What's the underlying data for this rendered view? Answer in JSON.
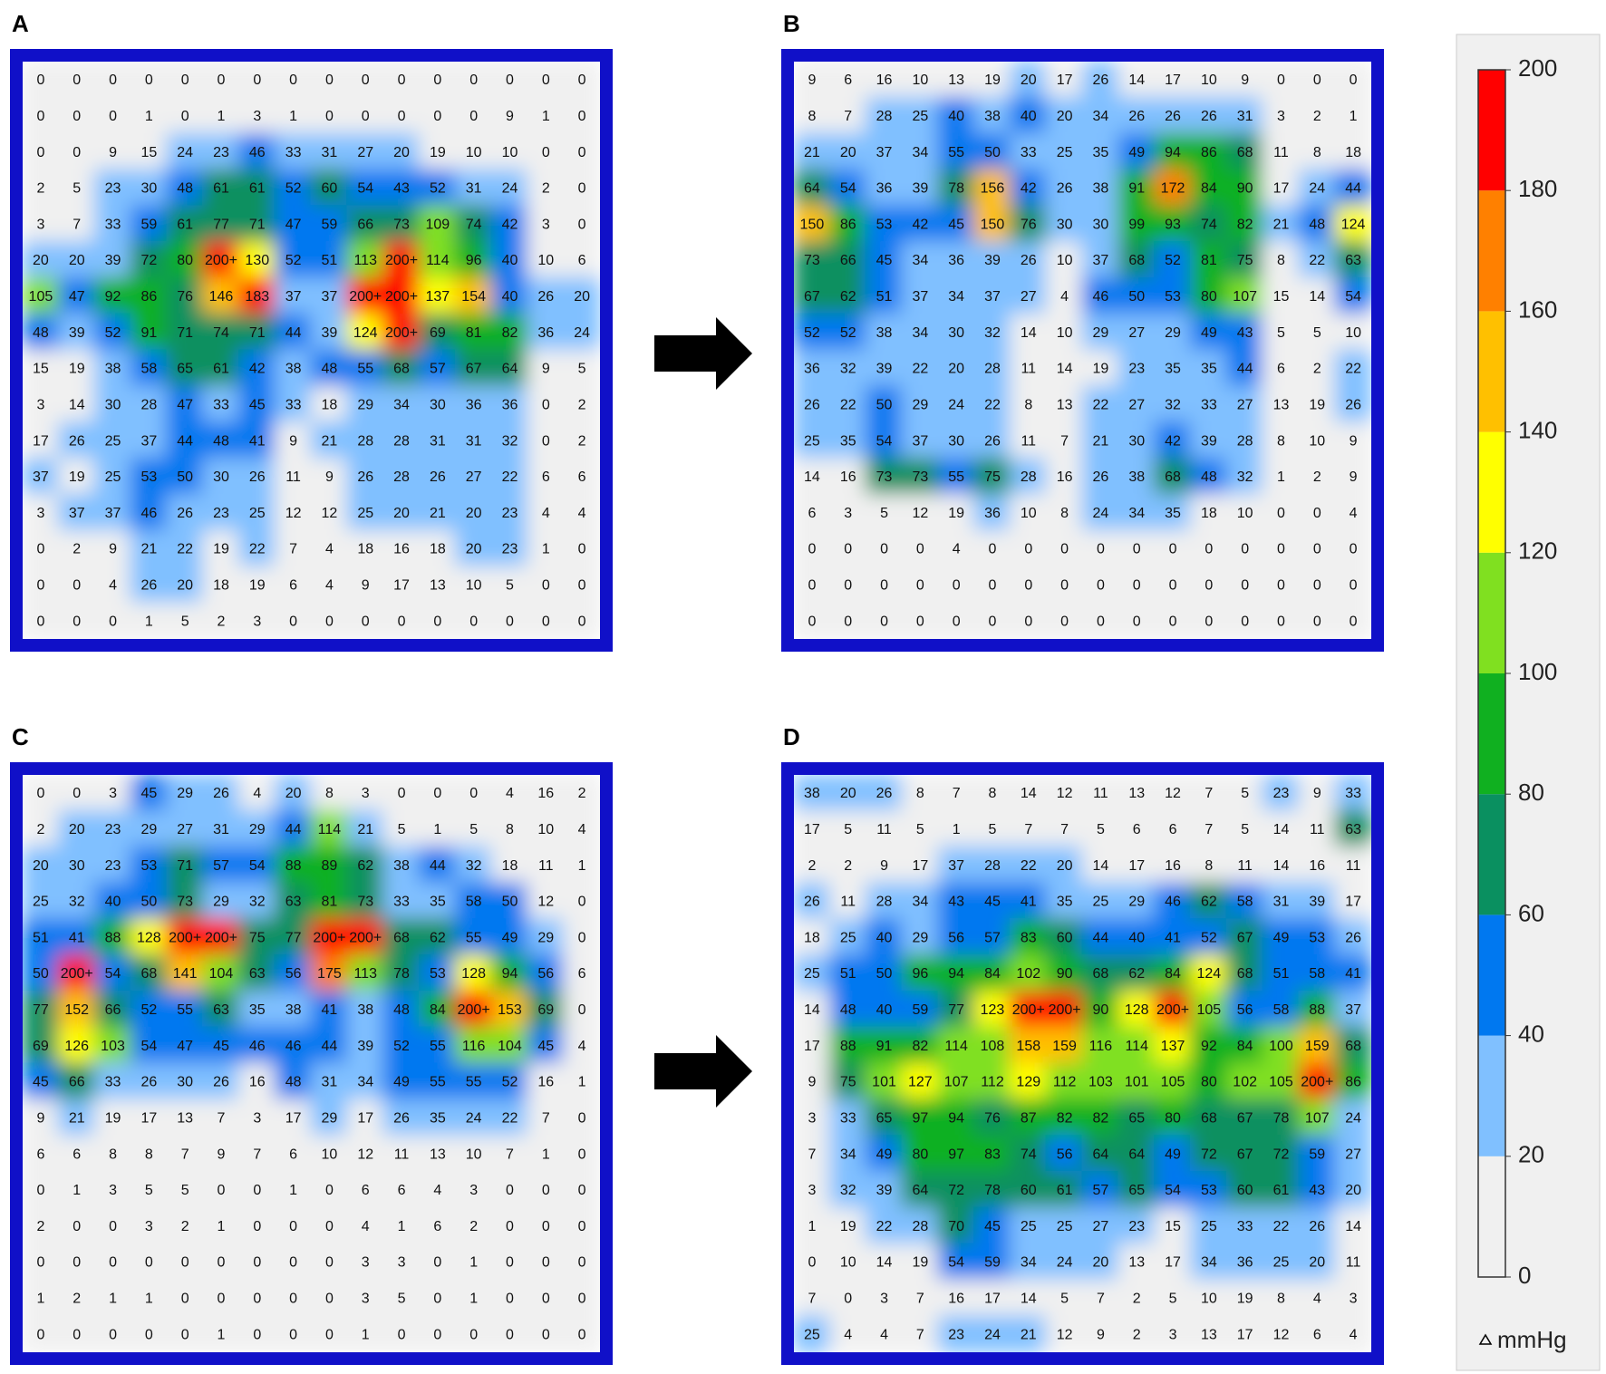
{
  "panels": [
    {
      "label": "A",
      "grid": [
        [
          0,
          0,
          0,
          0,
          0,
          0,
          0,
          0,
          0,
          0,
          0,
          0,
          0,
          0,
          0,
          0
        ],
        [
          0,
          0,
          0,
          1,
          0,
          1,
          3,
          1,
          0,
          0,
          0,
          0,
          0,
          9,
          1,
          0
        ],
        [
          0,
          0,
          9,
          15,
          24,
          23,
          46,
          33,
          31,
          27,
          20,
          19,
          10,
          10,
          0,
          0
        ],
        [
          2,
          5,
          23,
          30,
          48,
          61,
          61,
          52,
          60,
          54,
          43,
          52,
          31,
          24,
          2,
          0
        ],
        [
          3,
          7,
          33,
          59,
          61,
          77,
          71,
          47,
          59,
          66,
          73,
          109,
          74,
          42,
          3,
          0
        ],
        [
          20,
          20,
          39,
          72,
          80,
          "200+",
          130,
          52,
          51,
          113,
          "200+",
          114,
          96,
          40,
          10,
          6
        ],
        [
          105,
          47,
          92,
          86,
          76,
          146,
          183,
          37,
          37,
          "200+",
          "200+",
          137,
          154,
          40,
          26,
          20
        ],
        [
          48,
          39,
          52,
          91,
          71,
          74,
          71,
          44,
          39,
          124,
          "200+",
          69,
          81,
          82,
          36,
          24
        ],
        [
          15,
          19,
          38,
          58,
          65,
          61,
          42,
          38,
          48,
          55,
          68,
          57,
          67,
          64,
          9,
          5
        ],
        [
          3,
          14,
          30,
          28,
          47,
          33,
          45,
          33,
          18,
          29,
          34,
          30,
          36,
          36,
          0,
          2
        ],
        [
          17,
          26,
          25,
          37,
          44,
          48,
          41,
          9,
          21,
          28,
          28,
          31,
          31,
          32,
          0,
          2
        ],
        [
          37,
          19,
          25,
          53,
          50,
          30,
          26,
          11,
          9,
          26,
          28,
          26,
          27,
          22,
          6,
          6
        ],
        [
          3,
          37,
          37,
          46,
          26,
          23,
          25,
          12,
          12,
          25,
          20,
          21,
          20,
          23,
          4,
          4
        ],
        [
          0,
          2,
          9,
          21,
          22,
          19,
          22,
          7,
          4,
          18,
          16,
          18,
          20,
          23,
          1,
          0
        ],
        [
          0,
          0,
          4,
          26,
          20,
          18,
          19,
          6,
          4,
          9,
          17,
          13,
          10,
          5,
          0,
          0
        ],
        [
          0,
          0,
          0,
          1,
          5,
          2,
          3,
          0,
          0,
          0,
          0,
          0,
          0,
          0,
          0,
          0
        ]
      ]
    },
    {
      "label": "B",
      "grid": [
        [
          9,
          6,
          16,
          10,
          13,
          19,
          20,
          17,
          26,
          14,
          17,
          10,
          9,
          0,
          0,
          0
        ],
        [
          8,
          7,
          28,
          25,
          40,
          38,
          40,
          20,
          34,
          26,
          26,
          26,
          31,
          3,
          2,
          1
        ],
        [
          21,
          20,
          37,
          34,
          55,
          50,
          33,
          25,
          35,
          49,
          94,
          86,
          68,
          11,
          8,
          18
        ],
        [
          64,
          54,
          36,
          39,
          78,
          156,
          42,
          26,
          38,
          91,
          172,
          84,
          90,
          17,
          24,
          44
        ],
        [
          150,
          86,
          53,
          42,
          45,
          150,
          76,
          30,
          30,
          99,
          93,
          74,
          82,
          21,
          48,
          124
        ],
        [
          73,
          66,
          45,
          34,
          36,
          39,
          26,
          10,
          37,
          68,
          52,
          81,
          75,
          8,
          22,
          63
        ],
        [
          67,
          62,
          51,
          37,
          34,
          37,
          27,
          4,
          46,
          50,
          53,
          80,
          107,
          15,
          14,
          54
        ],
        [
          52,
          52,
          38,
          34,
          30,
          32,
          14,
          10,
          29,
          27,
          29,
          49,
          43,
          5,
          5,
          10
        ],
        [
          36,
          32,
          39,
          22,
          20,
          28,
          11,
          14,
          19,
          23,
          35,
          35,
          44,
          6,
          2,
          22
        ],
        [
          26,
          22,
          50,
          29,
          24,
          22,
          8,
          13,
          22,
          27,
          32,
          33,
          27,
          13,
          19,
          26
        ],
        [
          25,
          35,
          54,
          37,
          30,
          26,
          11,
          7,
          21,
          30,
          42,
          39,
          28,
          8,
          10,
          9
        ],
        [
          14,
          16,
          73,
          73,
          55,
          75,
          28,
          16,
          26,
          38,
          68,
          48,
          32,
          1,
          2,
          9
        ],
        [
          6,
          3,
          5,
          12,
          19,
          36,
          10,
          8,
          24,
          34,
          35,
          18,
          10,
          0,
          0,
          4
        ],
        [
          0,
          0,
          0,
          0,
          4,
          0,
          0,
          0,
          0,
          0,
          0,
          0,
          0,
          0,
          0,
          0
        ],
        [
          0,
          0,
          0,
          0,
          0,
          0,
          0,
          0,
          0,
          0,
          0,
          0,
          0,
          0,
          0,
          0
        ],
        [
          0,
          0,
          0,
          0,
          0,
          0,
          0,
          0,
          0,
          0,
          0,
          0,
          0,
          0,
          0,
          0
        ]
      ]
    },
    {
      "label": "C",
      "grid": [
        [
          0,
          0,
          3,
          45,
          29,
          26,
          4,
          20,
          8,
          3,
          0,
          0,
          0,
          4,
          16,
          2
        ],
        [
          2,
          20,
          23,
          29,
          27,
          31,
          29,
          44,
          114,
          21,
          5,
          1,
          5,
          8,
          10,
          4
        ],
        [
          20,
          30,
          23,
          53,
          71,
          57,
          54,
          88,
          89,
          62,
          38,
          44,
          32,
          18,
          11,
          1
        ],
        [
          25,
          32,
          40,
          50,
          73,
          29,
          32,
          63,
          81,
          73,
          33,
          35,
          58,
          50,
          12,
          0
        ],
        [
          51,
          41,
          88,
          128,
          "200+",
          "200+",
          75,
          77,
          "200+",
          "200+",
          68,
          62,
          55,
          49,
          29,
          0
        ],
        [
          50,
          "200+",
          54,
          68,
          141,
          104,
          63,
          56,
          175,
          113,
          78,
          53,
          128,
          94,
          56,
          6
        ],
        [
          77,
          152,
          66,
          52,
          55,
          63,
          35,
          38,
          41,
          38,
          48,
          84,
          "200+",
          153,
          69,
          0
        ],
        [
          69,
          126,
          103,
          54,
          47,
          45,
          46,
          46,
          44,
          39,
          52,
          55,
          116,
          104,
          45,
          4
        ],
        [
          45,
          66,
          33,
          26,
          30,
          26,
          16,
          48,
          31,
          34,
          49,
          55,
          55,
          52,
          16,
          1
        ],
        [
          9,
          21,
          19,
          17,
          13,
          7,
          3,
          17,
          29,
          17,
          26,
          35,
          24,
          22,
          7,
          0
        ],
        [
          6,
          6,
          8,
          8,
          7,
          9,
          7,
          6,
          10,
          12,
          11,
          13,
          10,
          7,
          1,
          0
        ],
        [
          0,
          1,
          3,
          5,
          5,
          0,
          0,
          1,
          0,
          6,
          6,
          4,
          3,
          0,
          0,
          0
        ],
        [
          2,
          0,
          0,
          3,
          2,
          1,
          0,
          0,
          0,
          4,
          1,
          6,
          2,
          0,
          0,
          0
        ],
        [
          0,
          0,
          0,
          0,
          0,
          0,
          0,
          0,
          0,
          3,
          3,
          0,
          1,
          0,
          0,
          0
        ],
        [
          1,
          2,
          1,
          1,
          0,
          0,
          0,
          0,
          0,
          3,
          5,
          0,
          1,
          0,
          0,
          0
        ],
        [
          0,
          0,
          0,
          0,
          0,
          1,
          0,
          0,
          0,
          1,
          0,
          0,
          0,
          0,
          0,
          0
        ]
      ]
    },
    {
      "label": "D",
      "grid": [
        [
          38,
          20,
          26,
          8,
          7,
          8,
          14,
          12,
          11,
          13,
          12,
          7,
          5,
          23,
          9,
          33
        ],
        [
          17,
          5,
          11,
          5,
          1,
          5,
          7,
          7,
          5,
          6,
          6,
          7,
          5,
          14,
          11,
          63
        ],
        [
          2,
          2,
          9,
          17,
          37,
          28,
          22,
          20,
          14,
          17,
          16,
          8,
          11,
          14,
          16,
          11
        ],
        [
          26,
          11,
          28,
          34,
          43,
          45,
          41,
          35,
          25,
          29,
          46,
          62,
          58,
          31,
          39,
          17
        ],
        [
          18,
          25,
          40,
          29,
          56,
          57,
          83,
          60,
          44,
          40,
          41,
          52,
          67,
          49,
          53,
          26
        ],
        [
          25,
          51,
          50,
          96,
          94,
          84,
          102,
          90,
          68,
          62,
          84,
          124,
          68,
          51,
          58,
          41
        ],
        [
          14,
          48,
          40,
          59,
          77,
          123,
          "200+",
          "200+",
          90,
          128,
          "200+",
          105,
          56,
          58,
          88,
          37
        ],
        [
          17,
          88,
          91,
          82,
          114,
          108,
          158,
          159,
          116,
          114,
          137,
          92,
          84,
          100,
          159,
          68
        ],
        [
          9,
          75,
          101,
          127,
          107,
          112,
          129,
          112,
          103,
          101,
          105,
          80,
          102,
          105,
          "200+",
          86
        ],
        [
          3,
          33,
          65,
          97,
          94,
          76,
          87,
          82,
          82,
          65,
          80,
          68,
          67,
          78,
          107,
          24
        ],
        [
          7,
          34,
          49,
          80,
          97,
          83,
          74,
          56,
          64,
          64,
          49,
          72,
          67,
          72,
          59,
          27
        ],
        [
          3,
          32,
          39,
          64,
          72,
          78,
          60,
          61,
          57,
          65,
          54,
          53,
          60,
          61,
          43,
          20
        ],
        [
          1,
          19,
          22,
          28,
          70,
          45,
          25,
          25,
          27,
          23,
          15,
          25,
          33,
          22,
          26,
          14
        ],
        [
          0,
          10,
          14,
          19,
          54,
          59,
          34,
          24,
          20,
          13,
          17,
          34,
          36,
          25,
          20,
          11
        ],
        [
          7,
          0,
          3,
          7,
          16,
          17,
          14,
          5,
          7,
          2,
          5,
          10,
          19,
          8,
          4,
          3
        ],
        [
          25,
          4,
          4,
          7,
          23,
          24,
          21,
          12,
          9,
          2,
          3,
          13,
          17,
          12,
          6,
          4
        ]
      ]
    }
  ],
  "colorbar": {
    "ticks": [
      0,
      20,
      40,
      60,
      80,
      100,
      120,
      140,
      160,
      180,
      200
    ],
    "colors": [
      "#f0f0f0",
      "#80c0ff",
      "#0078f0",
      "#0a9060",
      "#10b020",
      "#80e020",
      "#ffff00",
      "#ffc000",
      "#ff8000",
      "#ff0000"
    ],
    "unit": "mmHg"
  }
}
